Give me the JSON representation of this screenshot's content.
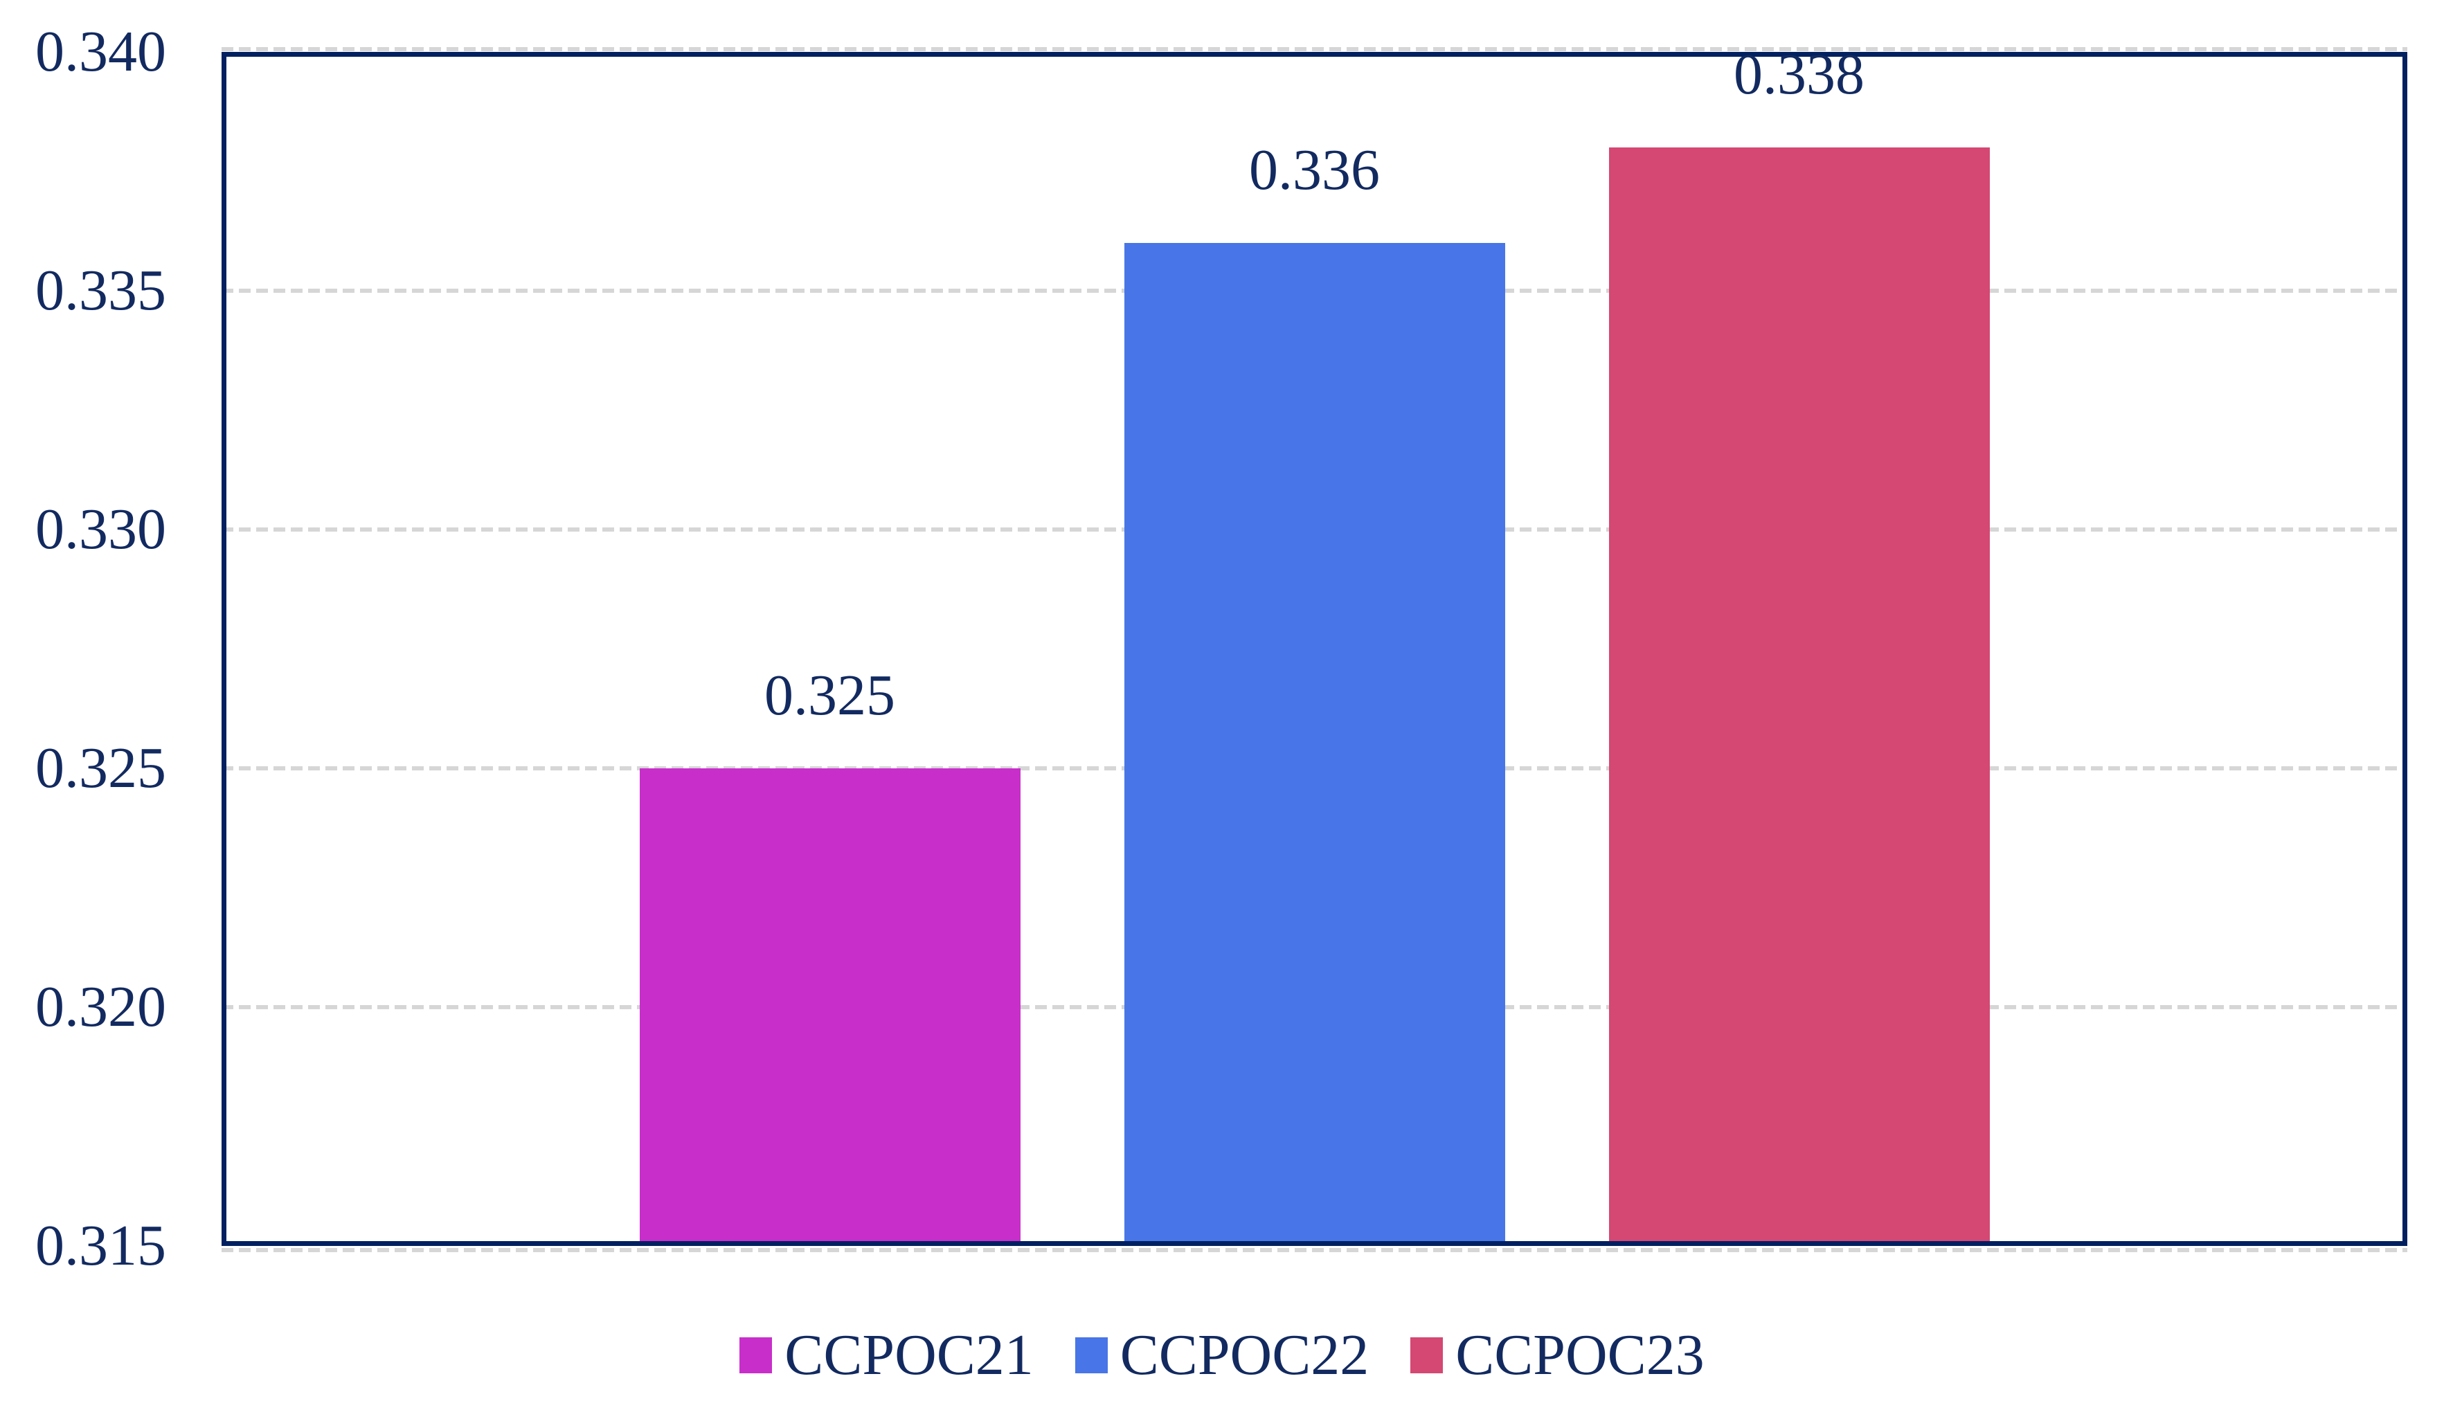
{
  "chart_data": {
    "type": "bar",
    "title": "",
    "xlabel": "",
    "ylabel": "",
    "categories": [
      "CCPOC21",
      "CCPOC22",
      "CCPOC23"
    ],
    "values": [
      0.325,
      0.336,
      0.338
    ],
    "data_labels": [
      "0.325",
      "0.336",
      "0.338"
    ],
    "bar_colors": [
      "#C82FCA",
      "#4875E7",
      "#D44873"
    ],
    "ylim": [
      0.315,
      0.34
    ],
    "yticks": [
      0.315,
      0.32,
      0.325,
      0.33,
      0.335,
      0.34
    ],
    "ytick_labels": [
      "0.315",
      "0.320",
      "0.325",
      "0.330",
      "0.335",
      "0.340"
    ],
    "grid": "horizontal-dashed",
    "legend_position": "bottom",
    "legend": [
      {
        "label": "CCPOC21",
        "color": "#C82FCA"
      },
      {
        "label": "CCPOC22",
        "color": "#4875E7"
      },
      {
        "label": "CCPOC23",
        "color": "#D44873"
      }
    ]
  },
  "colors": {
    "plot_border": "#002060",
    "label_text": "#122A60",
    "gridline": "#D6D6D6",
    "background": "#FFFFFF"
  }
}
